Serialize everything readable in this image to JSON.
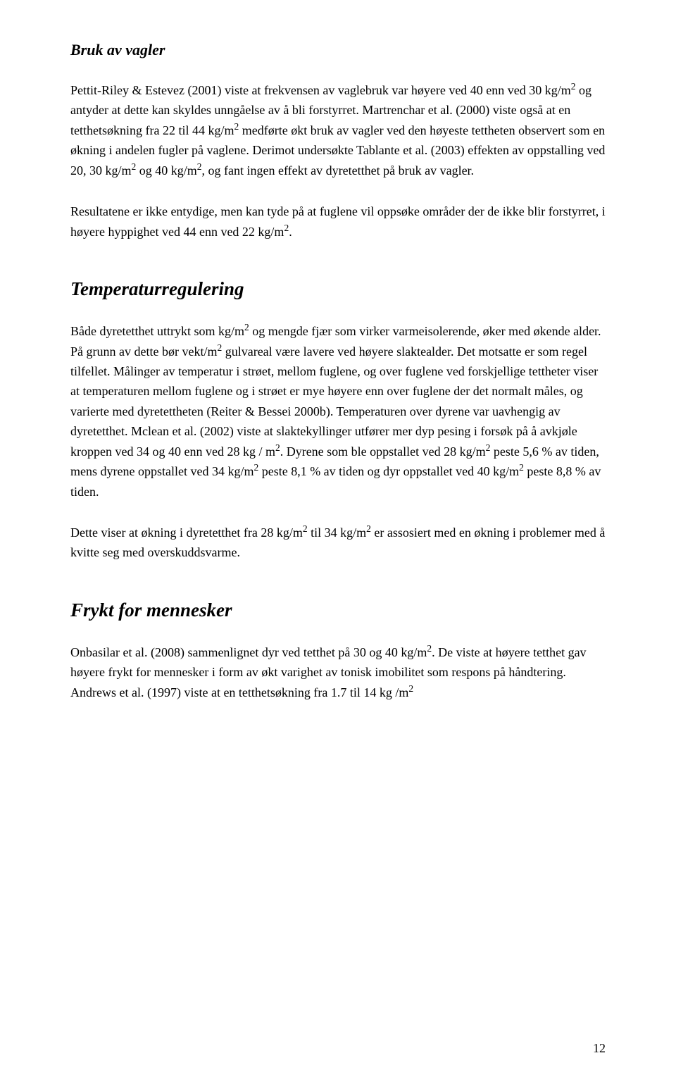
{
  "typography": {
    "body_font": "Times New Roman",
    "body_fontsize_pt": 12,
    "heading2_fontsize_pt": 14,
    "heading1_fontsize_pt": 16,
    "line_height": 1.58,
    "text_color": "#000000",
    "background_color": "#ffffff"
  },
  "page_number": "12",
  "sections": [
    {
      "heading_style": "h2-italic",
      "heading": "Bruk av vagler",
      "paragraphs": [
        "Pettit-Riley & Estevez (2001) viste at frekvensen av vaglebruk var høyere ved 40 enn ved 30 kg/m² og antyder at dette kan skyldes unngåelse av å bli forstyrret. Martrenchar et al. (2000) viste også at en tetthetsøkning fra 22 til 44 kg/m² medførte økt bruk av vagler ved den høyeste tettheten observert som en økning i andelen fugler på vaglene. Derimot undersøkte Tablante et al. (2003) effekten av oppstalling ved 20, 30 kg/m² og 40 kg/m², og fant ingen effekt av dyretetthet på bruk av vagler.",
        "Resultatene er ikke entydige, men kan tyde på at fuglene vil oppsøke områder der de ikke blir forstyrret, i høyere hyppighet ved 44 enn ved 22 kg/m²."
      ]
    },
    {
      "heading_style": "h1-bolditalic",
      "heading": "Temperaturregulering",
      "paragraphs": [
        "Både dyretetthet uttrykt som kg/m² og mengde fjær som virker varmeisolerende, øker med økende alder. På grunn av dette bør vekt/m² gulvareal være lavere ved høyere slaktealder. Det motsatte er som regel tilfellet. Målinger av temperatur i strøet, mellom fuglene, og over fuglene ved forskjellige tettheter viser at temperaturen mellom fuglene og i strøet er mye høyere enn over fuglene der det normalt måles, og varierte med dyretettheten (Reiter & Bessei 2000b). Temperaturen over dyrene var uavhengig av dyretetthet. Mclean et al. (2002) viste at slaktekyllinger utfører mer dyp pesing i forsøk på å avkjøle kroppen ved 34 og 40 enn ved 28 kg / m². Dyrene som ble oppstallet ved 28 kg/m² peste 5,6 % av tiden, mens dyrene oppstallet ved 34 kg/m² peste 8,1 % av tiden og dyr oppstallet ved 40 kg/m² peste 8,8 % av tiden.",
        "Dette viser at økning i dyretetthet fra 28 kg/m² til 34 kg/m² er assosiert med en økning i problemer med å kvitte seg med overskuddsvarme."
      ]
    },
    {
      "heading_style": "h1-bolditalic",
      "heading": "Frykt for mennesker",
      "paragraphs": [
        "Onbasilar et al. (2008) sammenlignet dyr ved tetthet på 30 og 40 kg/m². De viste at høyere tetthet gav høyere frykt for mennesker i form av økt varighet av tonisk imobilitet som respons på håndtering. Andrews et al. (1997) viste at en tetthetsøkning fra 1.7 til 14 kg /m²"
      ]
    }
  ]
}
